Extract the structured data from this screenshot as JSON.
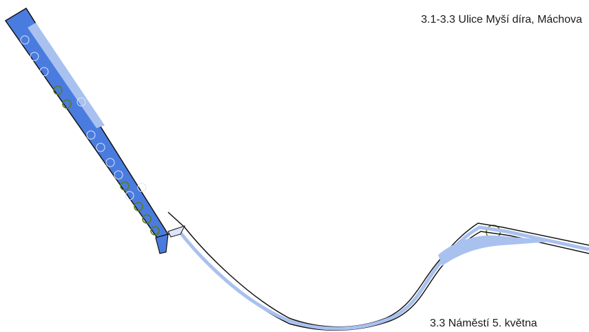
{
  "labels": {
    "top": "3.1-3.3 Ulice Myší díra, Máchova",
    "bottom": "3.3 Náměstí 5. května"
  },
  "colors": {
    "paved_area": "#4a7ce0",
    "light_paving": "#a9c1ef",
    "outline": "#111111",
    "tree_marker": "#5c7a1a",
    "planter_marker": "#dde6f8"
  }
}
